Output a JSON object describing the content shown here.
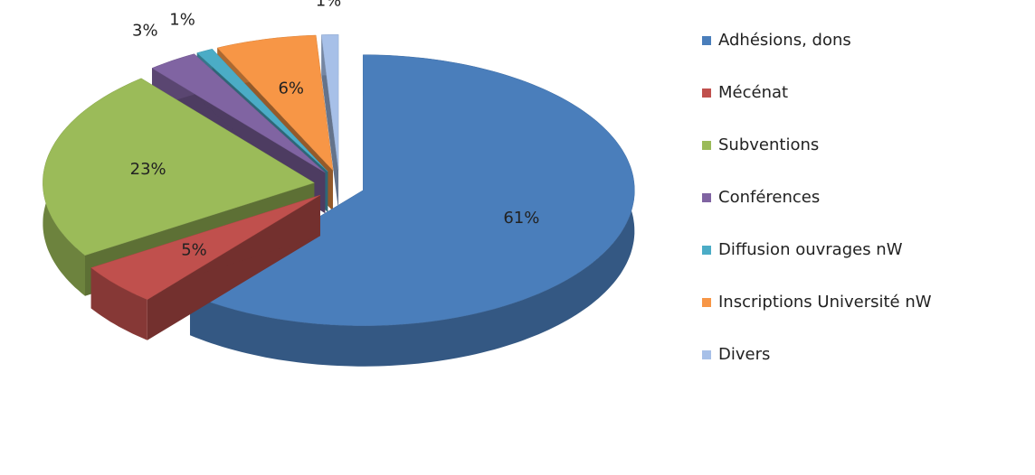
{
  "chart_data": {
    "type": "pie",
    "categories": [
      "Adhésions, dons",
      "Mécénat",
      "Subventions",
      "Conférences",
      "Diffusion ouvrages nW",
      "Inscriptions Université nW",
      "Divers"
    ],
    "values": [
      61,
      5,
      23,
      3,
      1,
      6,
      1
    ],
    "value_labels": [
      "61%",
      "5%",
      "23%",
      "3%",
      "1%",
      "6%",
      "1%"
    ],
    "colors": [
      "#4a7ebb",
      "#c0504d",
      "#9bbb59",
      "#8064a2",
      "#4bacc6",
      "#f79646",
      "#a7c0e8"
    ],
    "legend": "right"
  }
}
